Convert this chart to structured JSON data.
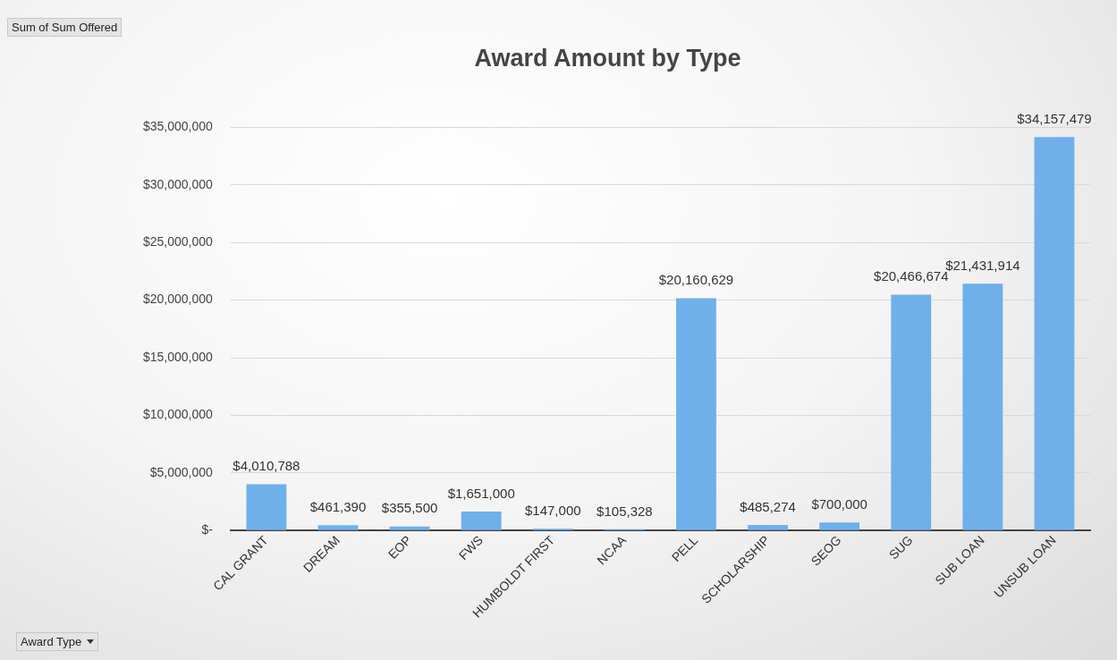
{
  "chart_data": {
    "type": "bar",
    "title": "Award Amount by Type",
    "categories": [
      "CAL GRANT",
      "DREAM",
      "EOP",
      "FWS",
      "HUMBOLDT FIRST",
      "NCAA",
      "PELL",
      "SCHOLARSHIP",
      "SEOG",
      "SUG",
      "SUB LOAN",
      "UNSUB LOAN"
    ],
    "values": [
      4010788,
      461390,
      355500,
      1651000,
      147000,
      105328,
      20160629,
      485274,
      700000,
      20466674,
      21431914,
      34157479
    ],
    "value_labels": [
      "$4,010,788",
      "$461,390",
      "$355,500",
      "$1,651,000",
      "$147,000",
      "$105,328",
      "$20,160,629",
      "$485,274",
      "$700,000",
      "$20,466,674",
      "$21,431,914",
      "$34,157,479"
    ],
    "color": "#6fb0ea",
    "ylim": [
      0,
      35000000
    ],
    "yticks": [
      {
        "value": 0,
        "label": "$-"
      },
      {
        "value": 5000000,
        "label": "$5,000,000"
      },
      {
        "value": 10000000,
        "label": "$10,000,000"
      },
      {
        "value": 15000000,
        "label": "$15,000,000"
      },
      {
        "value": 20000000,
        "label": "$20,000,000"
      },
      {
        "value": 25000000,
        "label": "$25,000,000"
      },
      {
        "value": 30000000,
        "label": "$30,000,000"
      },
      {
        "value": 35000000,
        "label": "$35,000,000"
      }
    ],
    "grid": "y",
    "legend": false,
    "annotations": [
      "Sum of Sum Offered",
      "Award Type"
    ]
  }
}
